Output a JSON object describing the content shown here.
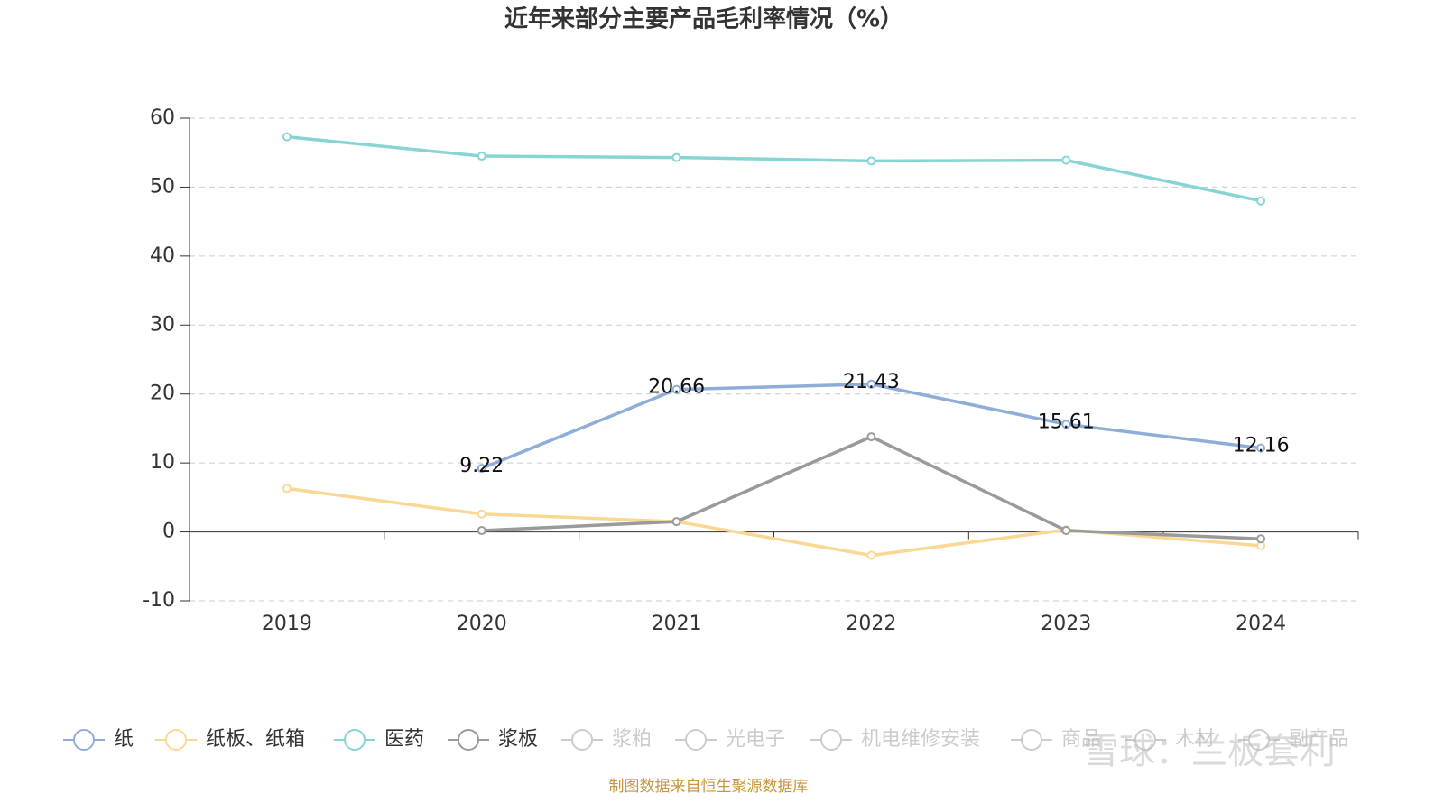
{
  "chart_data": {
    "type": "line",
    "title": "近年来部分主要产品毛利率情况（%）",
    "categories": [
      "2019",
      "2020",
      "2021",
      "2022",
      "2023",
      "2024"
    ],
    "series": [
      {
        "name": "纸",
        "color": "#8eadd8",
        "values": [
          null,
          9.22,
          20.66,
          21.43,
          15.61,
          12.16
        ],
        "show_labels": true
      },
      {
        "name": "纸板、纸箱",
        "color": "#fad894",
        "values": [
          6.3,
          2.6,
          1.5,
          -3.4,
          0.3,
          -2.0
        ]
      },
      {
        "name": "医药",
        "color": "#87d4d4",
        "values": [
          57.3,
          54.5,
          54.3,
          53.8,
          53.9,
          48.0
        ]
      },
      {
        "name": "浆板",
        "color": "#9a9a9a",
        "values": [
          null,
          0.2,
          1.5,
          13.8,
          0.2,
          -1.0
        ]
      },
      {
        "name": "浆粕",
        "color": "#cccccc",
        "values": [
          null,
          null,
          null,
          null,
          null,
          null
        ],
        "hidden": true
      },
      {
        "name": "光电子",
        "color": "#cccccc",
        "values": [
          null,
          null,
          null,
          null,
          null,
          null
        ],
        "hidden": true
      },
      {
        "name": "机电维修安装",
        "color": "#cccccc",
        "values": [
          null,
          null,
          null,
          null,
          null,
          null
        ],
        "hidden": true
      },
      {
        "name": "商品",
        "color": "#cccccc",
        "values": [
          null,
          null,
          null,
          null,
          null,
          null
        ],
        "hidden": true
      },
      {
        "name": "木材",
        "color": "#cccccc",
        "values": [
          null,
          null,
          null,
          null,
          null,
          null
        ],
        "hidden": true
      },
      {
        "name": "副产品",
        "color": "#cccccc",
        "values": [
          null,
          null,
          null,
          null,
          null,
          null
        ],
        "hidden": true
      }
    ],
    "ylim": [
      -10,
      60
    ],
    "yticks": [
      -10,
      0,
      10,
      20,
      30,
      40,
      50,
      60
    ],
    "grid": true,
    "legend": "bottom",
    "source": "制图数据来自恒生聚源数据库",
    "watermark": "雪球：兰板套利"
  }
}
